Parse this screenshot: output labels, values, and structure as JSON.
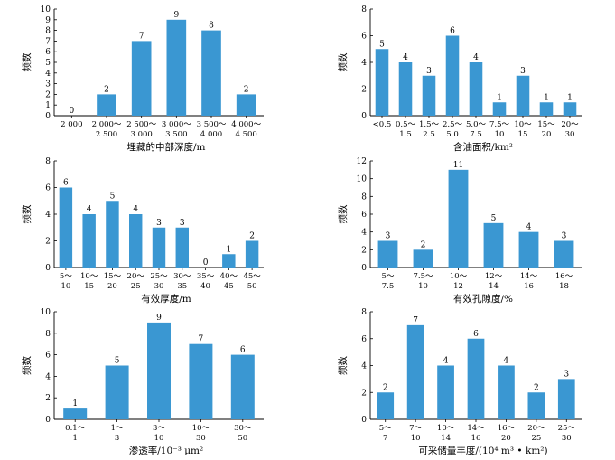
{
  "chart_data": [
    {
      "type": "bar",
      "xlabel": "埋藏的中部深度/m",
      "ylabel": "频数",
      "ylim": [
        0,
        10
      ],
      "yticks": [
        0,
        1,
        2,
        3,
        4,
        5,
        6,
        7,
        8,
        9,
        10
      ],
      "categories": [
        [
          "2 000"
        ],
        [
          "2 000～",
          "2 500"
        ],
        [
          "2 500～",
          "3 000"
        ],
        [
          "3 000～",
          "3 500"
        ],
        [
          "3 500～",
          "4 000"
        ],
        [
          "4 000～",
          "4 500"
        ]
      ],
      "values": [
        0,
        2,
        7,
        9,
        8,
        2
      ]
    },
    {
      "type": "bar",
      "xlabel": "含油面积/km²",
      "ylabel": "频数",
      "ylim": [
        0,
        8
      ],
      "yticks": [
        0,
        2,
        4,
        6,
        8
      ],
      "categories": [
        [
          "<0.5"
        ],
        [
          "0.5～",
          "1.5"
        ],
        [
          "1.5～",
          "2.5"
        ],
        [
          "2.5～",
          "5.0"
        ],
        [
          "5.0～",
          "7.5"
        ],
        [
          "7.5～",
          "10"
        ],
        [
          "10～",
          "15"
        ],
        [
          "15～",
          "20"
        ],
        [
          "20～",
          "30"
        ]
      ],
      "values": [
        5,
        4,
        3,
        6,
        4,
        1,
        3,
        1,
        1
      ]
    },
    {
      "type": "bar",
      "xlabel": "有效厚度/m",
      "ylabel": "频数",
      "ylim": [
        0,
        8
      ],
      "yticks": [
        0,
        2,
        4,
        6,
        8
      ],
      "categories": [
        [
          "5～",
          "10"
        ],
        [
          "10～",
          "15"
        ],
        [
          "15～",
          "20"
        ],
        [
          "20～",
          "25"
        ],
        [
          "25～",
          "30"
        ],
        [
          "30～",
          "35"
        ],
        [
          "35～",
          "40"
        ],
        [
          "40～",
          "45"
        ],
        [
          "45～",
          "50"
        ]
      ],
      "values": [
        6,
        4,
        5,
        4,
        3,
        3,
        0,
        1,
        2
      ]
    },
    {
      "type": "bar",
      "xlabel": "有效孔隙度/%",
      "ylabel": "频数",
      "ylim": [
        0,
        12
      ],
      "yticks": [
        0,
        2,
        4,
        6,
        8,
        10,
        12
      ],
      "categories": [
        [
          "5～",
          "7.5"
        ],
        [
          "7.5～",
          "10"
        ],
        [
          "10～",
          "12"
        ],
        [
          "12～",
          "14"
        ],
        [
          "14～",
          "16"
        ],
        [
          "16～",
          "18"
        ]
      ],
      "values": [
        3,
        2,
        11,
        5,
        4,
        3
      ]
    },
    {
      "type": "bar",
      "xlabel": "渗透率/10⁻³ μm²",
      "ylabel": "频数",
      "ylim": [
        0,
        10
      ],
      "yticks": [
        0,
        2,
        4,
        6,
        8,
        10
      ],
      "categories": [
        [
          "0.1～",
          "1"
        ],
        [
          "1～",
          "3"
        ],
        [
          "3～",
          "10"
        ],
        [
          "10～",
          "30"
        ],
        [
          "30～",
          "50"
        ]
      ],
      "values": [
        1,
        5,
        9,
        7,
        6
      ]
    },
    {
      "type": "bar",
      "xlabel": "可采储量丰度/(10⁴ m³ • km²)",
      "ylabel": "频数",
      "ylim": [
        0,
        8
      ],
      "yticks": [
        0,
        2,
        4,
        6,
        8
      ],
      "categories": [
        [
          "5～",
          "7"
        ],
        [
          "7～",
          "10"
        ],
        [
          "10～",
          "14"
        ],
        [
          "14～",
          "16"
        ],
        [
          "16～",
          "20"
        ],
        [
          "20～",
          "25"
        ],
        [
          "25～",
          "30"
        ]
      ],
      "values": [
        2,
        7,
        4,
        6,
        4,
        2,
        3
      ]
    }
  ]
}
